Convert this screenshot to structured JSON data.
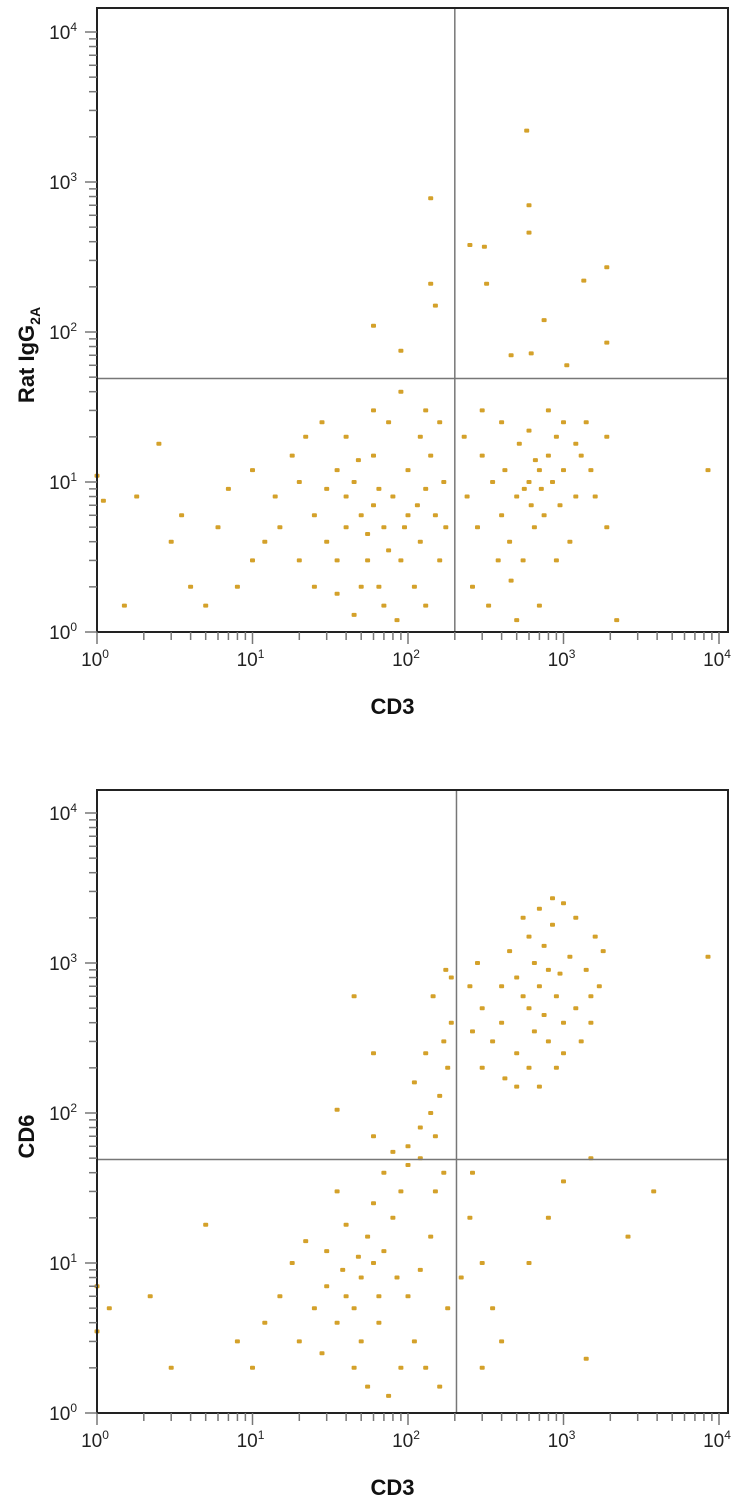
{
  "chart_data": [
    {
      "type": "scatter",
      "xlabel": "CD3",
      "ylabel": {
        "main": "Rat IgG",
        "sub": "2A"
      },
      "x_scale": "log",
      "y_scale": "log",
      "xlim": [
        1,
        10000
      ],
      "ylim": [
        1,
        10000
      ],
      "x_ticks": [
        {
          "base": "10",
          "exp": "0"
        },
        {
          "base": "10",
          "exp": "1"
        },
        {
          "base": "10",
          "exp": "2"
        },
        {
          "base": "10",
          "exp": "3"
        },
        {
          "base": "10",
          "exp": "4"
        }
      ],
      "y_ticks": [
        {
          "base": "10",
          "exp": "0"
        },
        {
          "base": "10",
          "exp": "1"
        },
        {
          "base": "10",
          "exp": "2"
        },
        {
          "base": "10",
          "exp": "3"
        },
        {
          "base": "10",
          "exp": "4"
        }
      ],
      "quadrant_gates": {
        "x": 200,
        "y": 49
      },
      "grid": false,
      "color": "#D4A12A",
      "points": [
        [
          50,
          6
        ],
        [
          40,
          5
        ],
        [
          60,
          7
        ],
        [
          30,
          4
        ],
        [
          45,
          10
        ],
        [
          70,
          5
        ],
        [
          80,
          8
        ],
        [
          100,
          6
        ],
        [
          120,
          4
        ],
        [
          130,
          9
        ],
        [
          35,
          12
        ],
        [
          25,
          6
        ],
        [
          20,
          3
        ],
        [
          15,
          5
        ],
        [
          55,
          3
        ],
        [
          65,
          2
        ],
        [
          90,
          3
        ],
        [
          110,
          2
        ],
        [
          140,
          15
        ],
        [
          150,
          6
        ],
        [
          40,
          20
        ],
        [
          60,
          15
        ],
        [
          75,
          25
        ],
        [
          100,
          12
        ],
        [
          120,
          20
        ],
        [
          30,
          9
        ],
        [
          50,
          2
        ],
        [
          70,
          1.5
        ],
        [
          85,
          1.2
        ],
        [
          45,
          1.3
        ],
        [
          20,
          10
        ],
        [
          18,
          15
        ],
        [
          12,
          4
        ],
        [
          10,
          3
        ],
        [
          25,
          2
        ],
        [
          35,
          1.8
        ],
        [
          130,
          1.5
        ],
        [
          160,
          3
        ],
        [
          170,
          10
        ],
        [
          60,
          30
        ],
        [
          90,
          40
        ],
        [
          130,
          30
        ],
        [
          28,
          25
        ],
        [
          14,
          8
        ],
        [
          8,
          2
        ],
        [
          6,
          5
        ],
        [
          5,
          1.5
        ],
        [
          7,
          9
        ],
        [
          40,
          8
        ],
        [
          55,
          4.5
        ],
        [
          65,
          9
        ],
        [
          95,
          5
        ],
        [
          115,
          7
        ],
        [
          75,
          3.5
        ],
        [
          35,
          3
        ],
        [
          48,
          14
        ],
        [
          160,
          25
        ],
        [
          175,
          5
        ],
        [
          10,
          12
        ],
        [
          22,
          20
        ],
        [
          600,
          10
        ],
        [
          500,
          8
        ],
        [
          700,
          12
        ],
        [
          800,
          15
        ],
        [
          400,
          6
        ],
        [
          350,
          10
        ],
        [
          900,
          20
        ],
        [
          1000,
          12
        ],
        [
          1200,
          8
        ],
        [
          450,
          4
        ],
        [
          550,
          3
        ],
        [
          650,
          5
        ],
        [
          750,
          6
        ],
        [
          300,
          15
        ],
        [
          280,
          5
        ],
        [
          260,
          2
        ],
        [
          330,
          1.5
        ],
        [
          500,
          1.2
        ],
        [
          700,
          1.5
        ],
        [
          900,
          3
        ],
        [
          1100,
          4
        ],
        [
          1300,
          15
        ],
        [
          1500,
          12
        ],
        [
          1400,
          25
        ],
        [
          1000,
          25
        ],
        [
          800,
          30
        ],
        [
          600,
          22
        ],
        [
          400,
          25
        ],
        [
          300,
          30
        ],
        [
          1600,
          8
        ],
        [
          1900,
          20
        ],
        [
          1900,
          5
        ],
        [
          420,
          12
        ],
        [
          520,
          18
        ],
        [
          620,
          7
        ],
        [
          720,
          9
        ],
        [
          850,
          10
        ],
        [
          950,
          7
        ],
        [
          380,
          3
        ],
        [
          460,
          2.2
        ],
        [
          240,
          8
        ],
        [
          230,
          20
        ],
        [
          1200,
          18
        ],
        [
          660,
          14
        ],
        [
          560,
          9
        ],
        [
          140,
          780
        ],
        [
          580,
          2200
        ],
        [
          600,
          700
        ],
        [
          600,
          460
        ],
        [
          250,
          380
        ],
        [
          310,
          370
        ],
        [
          320,
          210
        ],
        [
          140,
          210
        ],
        [
          150,
          150
        ],
        [
          1900,
          270
        ],
        [
          1350,
          220
        ],
        [
          750,
          120
        ],
        [
          1900,
          85
        ],
        [
          8500,
          12
        ],
        [
          60,
          110
        ],
        [
          90,
          75
        ],
        [
          460,
          70
        ],
        [
          620,
          72
        ],
        [
          1050,
          60
        ],
        [
          2200,
          1.2
        ],
        [
          2.5,
          18
        ],
        [
          1,
          11
        ],
        [
          1.1,
          7.5
        ],
        [
          1.8,
          8
        ],
        [
          1.5,
          1.5
        ],
        [
          3,
          4
        ],
        [
          4,
          2
        ],
        [
          3.5,
          6
        ]
      ]
    },
    {
      "type": "scatter",
      "xlabel": "CD3",
      "ylabel": {
        "main": "CD6",
        "sub": ""
      },
      "x_scale": "log",
      "y_scale": "log",
      "xlim": [
        1,
        10000
      ],
      "ylim": [
        1,
        10000
      ],
      "x_ticks": [
        {
          "base": "10",
          "exp": "0"
        },
        {
          "base": "10",
          "exp": "1"
        },
        {
          "base": "10",
          "exp": "2"
        },
        {
          "base": "10",
          "exp": "3"
        },
        {
          "base": "10",
          "exp": "4"
        }
      ],
      "y_ticks": [
        {
          "base": "10",
          "exp": "0"
        },
        {
          "base": "10",
          "exp": "1"
        },
        {
          "base": "10",
          "exp": "2"
        },
        {
          "base": "10",
          "exp": "3"
        },
        {
          "base": "10",
          "exp": "4"
        }
      ],
      "quadrant_gates": {
        "x": 205,
        "y": 49
      },
      "grid": false,
      "color": "#D4A12A",
      "points": [
        [
          700,
          700
        ],
        [
          600,
          500
        ],
        [
          800,
          900
        ],
        [
          900,
          600
        ],
        [
          500,
          800
        ],
        [
          650,
          1000
        ],
        [
          750,
          1300
        ],
        [
          850,
          1800
        ],
        [
          1000,
          2500
        ],
        [
          550,
          2000
        ],
        [
          450,
          1200
        ],
        [
          400,
          400
        ],
        [
          350,
          300
        ],
        [
          300,
          200
        ],
        [
          500,
          250
        ],
        [
          600,
          200
        ],
        [
          700,
          150
        ],
        [
          800,
          300
        ],
        [
          1000,
          400
        ],
        [
          1200,
          500
        ],
        [
          1400,
          900
        ],
        [
          1600,
          1500
        ],
        [
          1800,
          1200
        ],
        [
          1100,
          1100
        ],
        [
          950,
          850
        ],
        [
          550,
          600
        ],
        [
          650,
          350
        ],
        [
          750,
          450
        ],
        [
          400,
          700
        ],
        [
          300,
          500
        ],
        [
          260,
          350
        ],
        [
          250,
          700
        ],
        [
          280,
          1000
        ],
        [
          1300,
          300
        ],
        [
          1500,
          400
        ],
        [
          900,
          200
        ],
        [
          500,
          150
        ],
        [
          420,
          170
        ],
        [
          1000,
          250
        ],
        [
          600,
          1500
        ],
        [
          700,
          2300
        ],
        [
          850,
          2700
        ],
        [
          1200,
          2000
        ],
        [
          1700,
          700
        ],
        [
          1500,
          600
        ],
        [
          50,
          8
        ],
        [
          40,
          6
        ],
        [
          60,
          10
        ],
        [
          70,
          12
        ],
        [
          45,
          5
        ],
        [
          35,
          4
        ],
        [
          55,
          15
        ],
        [
          80,
          20
        ],
        [
          30,
          7
        ],
        [
          25,
          5
        ],
        [
          20,
          3
        ],
        [
          100,
          6
        ],
        [
          120,
          9
        ],
        [
          140,
          15
        ],
        [
          90,
          30
        ],
        [
          60,
          25
        ],
        [
          40,
          18
        ],
        [
          30,
          12
        ],
        [
          150,
          30
        ],
        [
          170,
          40
        ],
        [
          65,
          4
        ],
        [
          50,
          3
        ],
        [
          45,
          2
        ],
        [
          55,
          1.5
        ],
        [
          75,
          1.3
        ],
        [
          90,
          2
        ],
        [
          110,
          3
        ],
        [
          130,
          2
        ],
        [
          15,
          6
        ],
        [
          12,
          4
        ],
        [
          10,
          2
        ],
        [
          8,
          3
        ],
        [
          18,
          10
        ],
        [
          22,
          14
        ],
        [
          35,
          30
        ],
        [
          70,
          40
        ],
        [
          120,
          50
        ],
        [
          100,
          45
        ],
        [
          85,
          8
        ],
        [
          65,
          6
        ],
        [
          48,
          11
        ],
        [
          38,
          9
        ],
        [
          28,
          2.5
        ],
        [
          160,
          1.5
        ],
        [
          180,
          5
        ],
        [
          100,
          60
        ],
        [
          120,
          80
        ],
        [
          140,
          100
        ],
        [
          160,
          130
        ],
        [
          180,
          200
        ],
        [
          170,
          300
        ],
        [
          190,
          400
        ],
        [
          150,
          70
        ],
        [
          80,
          55
        ],
        [
          60,
          70
        ],
        [
          110,
          160
        ],
        [
          190,
          800
        ],
        [
          175,
          900
        ],
        [
          145,
          600
        ],
        [
          130,
          250
        ],
        [
          250,
          20
        ],
        [
          300,
          10
        ],
        [
          350,
          5
        ],
        [
          220,
          8
        ],
        [
          400,
          3
        ],
        [
          300,
          2
        ],
        [
          600,
          10
        ],
        [
          800,
          20
        ],
        [
          1400,
          2.3
        ],
        [
          2600,
          15
        ],
        [
          3800,
          30
        ],
        [
          1500,
          50
        ],
        [
          1000,
          35
        ],
        [
          260,
          40
        ],
        [
          8500,
          1100
        ],
        [
          45,
          600
        ],
        [
          60,
          250
        ],
        [
          35,
          105
        ],
        [
          1,
          7
        ],
        [
          1.2,
          5
        ],
        [
          2.2,
          6
        ],
        [
          1,
          3.5
        ],
        [
          3,
          2
        ],
        [
          5,
          18
        ]
      ]
    }
  ]
}
